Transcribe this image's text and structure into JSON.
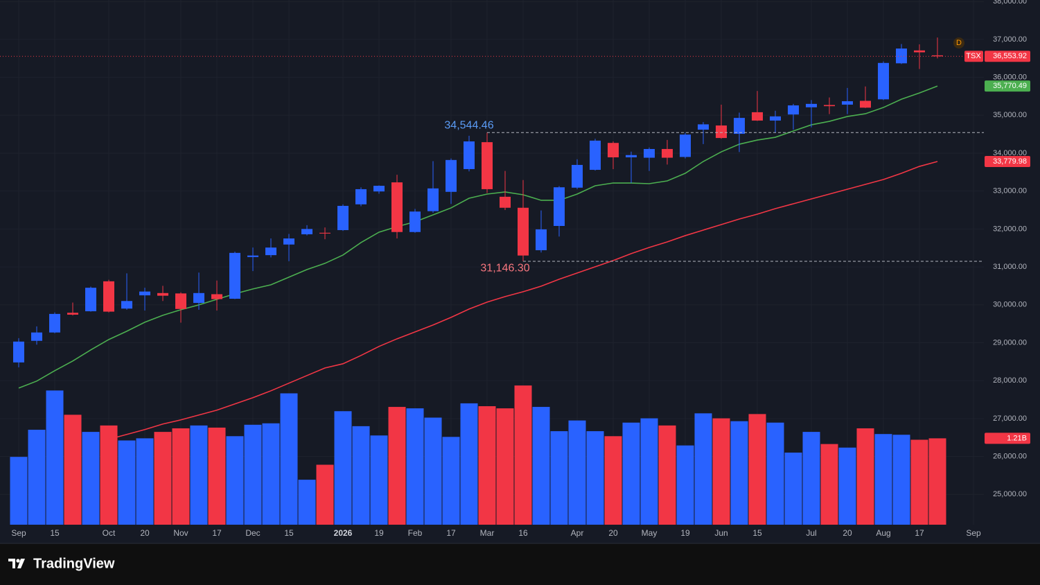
{
  "chart_data": {
    "type": "candlestick",
    "symbol": "TSX",
    "categories": [
      "Sep",
      null,
      "15",
      null,
      null,
      "Oct",
      null,
      "20",
      null,
      "Nov",
      null,
      "17",
      null,
      "Dec",
      null,
      "15",
      null,
      null,
      "2026",
      null,
      "19",
      null,
      "Feb",
      null,
      "17",
      null,
      "Mar",
      null,
      "16",
      null,
      null,
      "Apr",
      null,
      "20",
      null,
      "May",
      null,
      "19",
      null,
      "Jun",
      null,
      "15",
      null,
      null,
      "Jul",
      null,
      "20",
      null,
      "Aug",
      null,
      "17",
      null,
      null,
      "Sep"
    ],
    "open": [
      28480,
      29050,
      29270,
      29790,
      29830,
      30620,
      29900,
      30250,
      30310,
      30300,
      30050,
      30280,
      30160,
      31260,
      31310,
      31590,
      31860,
      31900,
      31970,
      32650,
      32990,
      33230,
      31920,
      32470,
      32980,
      33580,
      34290,
      32850,
      32560,
      31440,
      32080,
      33090,
      33560,
      34270,
      33890,
      33880,
      34110,
      33900,
      34620,
      34730,
      34510,
      35080,
      34860,
      35020,
      35210,
      35270,
      35280,
      35380,
      35420,
      36370,
      36710,
      36580,
      null,
      null
    ],
    "high": [
      29120,
      29430,
      29800,
      30060,
      30480,
      30660,
      30830,
      30450,
      30500,
      30330,
      30850,
      30640,
      31400,
      31510,
      31750,
      31870,
      32100,
      32040,
      32650,
      33100,
      33150,
      33430,
      32530,
      33790,
      33860,
      34460,
      34544.46,
      33530,
      33290,
      32490,
      33130,
      33840,
      34380,
      34310,
      34040,
      34150,
      34350,
      34540,
      34820,
      35280,
      35070,
      35640,
      35120,
      35300,
      35400,
      35470,
      35720,
      35760,
      36420,
      36880,
      36870,
      37050,
      null,
      null
    ],
    "low": [
      28350,
      28950,
      29250,
      29720,
      29820,
      29800,
      29870,
      29850,
      30100,
      29530,
      29870,
      29850,
      30150,
      30890,
      31250,
      31150,
      31830,
      31730,
      31950,
      32600,
      32930,
      31750,
      31900,
      32430,
      32660,
      33520,
      32950,
      32500,
      31146.3,
      31380,
      31800,
      33050,
      33540,
      33580,
      33210,
      33530,
      33700,
      33860,
      34240,
      34380,
      34030,
      34850,
      34540,
      34620,
      34680,
      35030,
      35030,
      35190,
      35400,
      36350,
      36220,
      36500,
      null,
      null
    ],
    "close": [
      29030,
      29270,
      29760,
      29740,
      30450,
      29820,
      30100,
      30350,
      30240,
      29890,
      30310,
      30150,
      31370,
      31300,
      31510,
      31750,
      32000,
      31880,
      32610,
      33050,
      33140,
      31920,
      32460,
      33070,
      33820,
      34310,
      33050,
      32560,
      31300,
      31990,
      33100,
      33690,
      34330,
      33890,
      33950,
      34110,
      33880,
      34490,
      34760,
      34400,
      34930,
      34860,
      34970,
      35260,
      35300,
      35240,
      35370,
      35200,
      36380,
      36760,
      36660,
      36553.92,
      null,
      null
    ],
    "last_close_label": "36,553.92",
    "volume": [
      0.95,
      1.33,
      1.88,
      1.54,
      1.3,
      1.39,
      1.18,
      1.21,
      1.3,
      1.35,
      1.39,
      1.36,
      1.24,
      1.4,
      1.42,
      1.84,
      0.63,
      0.84,
      1.59,
      1.38,
      1.25,
      1.65,
      1.63,
      1.5,
      1.23,
      1.7,
      1.66,
      1.63,
      1.95,
      1.65,
      1.31,
      1.46,
      1.31,
      1.24,
      1.43,
      1.49,
      1.39,
      1.11,
      1.56,
      1.49,
      1.45,
      1.55,
      1.43,
      1.01,
      1.3,
      1.13,
      1.08,
      1.35,
      1.27,
      1.26,
      1.19,
      1.21,
      null,
      null
    ],
    "last_volume_label": "1.21B",
    "vlim": [
      0,
      7.35
    ],
    "up_color": "#2962ff",
    "down_color": "#f23645",
    "series": [
      {
        "color": "#4caf50",
        "last_label": "35,770.49",
        "values": [
          27805,
          27988,
          28262,
          28518,
          28810,
          29084,
          29303,
          29541,
          29724,
          29870,
          29998,
          30144,
          30290,
          30418,
          30528,
          30729,
          30930,
          31094,
          31313,
          31642,
          31916,
          32062,
          32190,
          32373,
          32556,
          32811,
          32921,
          32976,
          32903,
          32757,
          32757,
          32921,
          33140,
          33213,
          33213,
          33195,
          33268,
          33469,
          33780,
          34035,
          34236,
          34346,
          34419,
          34584,
          34748,
          34839,
          34967,
          35040,
          35205,
          35424,
          35588,
          35770.49,
          null,
          null
        ]
      },
      {
        "color": "#f23645",
        "last_label": "33,779.98",
        "values": [
          null,
          null,
          null,
          null,
          null,
          26453,
          26581,
          26709,
          26855,
          26965,
          27093,
          27221,
          27385,
          27550,
          27732,
          27933,
          28134,
          28335,
          28445,
          28664,
          28902,
          29103,
          29285,
          29468,
          29669,
          29888,
          30071,
          30217,
          30345,
          30491,
          30674,
          30838,
          31003,
          31167,
          31350,
          31514,
          31660,
          31825,
          31971,
          32117,
          32263,
          32391,
          32537,
          32665,
          32793,
          32921,
          33049,
          33177,
          33305,
          33469,
          33651,
          33779.98,
          null,
          null
        ]
      }
    ],
    "annotations": [
      {
        "value": 34544.46,
        "label": "34,544.46",
        "color": "#5b9cf6"
      },
      {
        "value": 31146.3,
        "label": "31,146.30",
        "color": "#f7767f"
      }
    ],
    "marker": "D",
    "ylim": [
      24200,
      38040
    ],
    "yticks": [
      {
        "value": 25000,
        "label": "25,000.00"
      },
      {
        "value": 26000,
        "label": "26,000.00"
      },
      {
        "value": 27000,
        "label": "27,000.00"
      },
      {
        "value": 28000,
        "label": "28,000.00"
      },
      {
        "value": 29000,
        "label": "29,000.00"
      },
      {
        "value": 30000,
        "label": "30,000.00"
      },
      {
        "value": 31000,
        "label": "31,000.00"
      },
      {
        "value": 32000,
        "label": "32,000.00"
      },
      {
        "value": 33000,
        "label": "33,000.00"
      },
      {
        "value": 34000,
        "label": "34,000.00"
      },
      {
        "value": 35000,
        "label": "35,000.00"
      },
      {
        "value": 36000,
        "label": "36,000.00"
      },
      {
        "value": 37000,
        "label": "37,000.00"
      },
      {
        "value": 38000,
        "label": "38,000.00"
      }
    ],
    "grid": true
  },
  "footer": {
    "logo": "TradingView"
  }
}
